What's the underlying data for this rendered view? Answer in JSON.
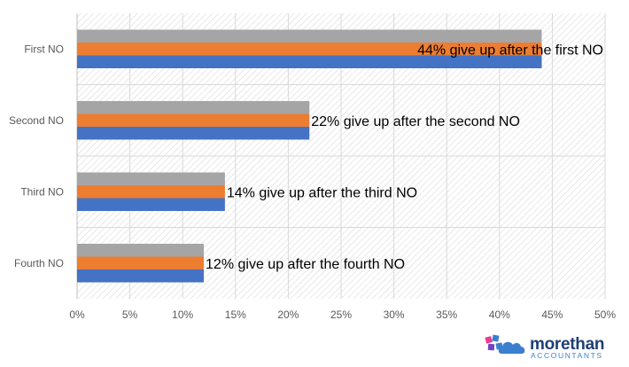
{
  "chart_data": {
    "type": "bar",
    "orientation": "horizontal",
    "categories": [
      "First NO",
      "Second NO",
      "Third NO",
      "Fourth NO"
    ],
    "series": [
      {
        "values": [
          44,
          22,
          14,
          12
        ],
        "color": "#a5a5a5"
      },
      {
        "values": [
          44,
          22,
          14,
          12
        ],
        "color": "#ed7d31"
      },
      {
        "values": [
          44,
          22,
          14,
          12
        ],
        "color": "#4472c4"
      }
    ],
    "data_labels": [
      "44% give up after the first NO",
      "22% give up after the second NO",
      "14% give up after the third NO",
      "12% give up after the fourth NO"
    ],
    "xticks": [
      "0%",
      "5%",
      "10%",
      "15%",
      "20%",
      "25%",
      "30%",
      "35%",
      "40%",
      "45%",
      "50%"
    ],
    "xlim": [
      0,
      50
    ],
    "grid": true,
    "plot_background": "hatched"
  },
  "logo": {
    "name": "morethan",
    "tagline": "ACCOUNTANTS"
  }
}
